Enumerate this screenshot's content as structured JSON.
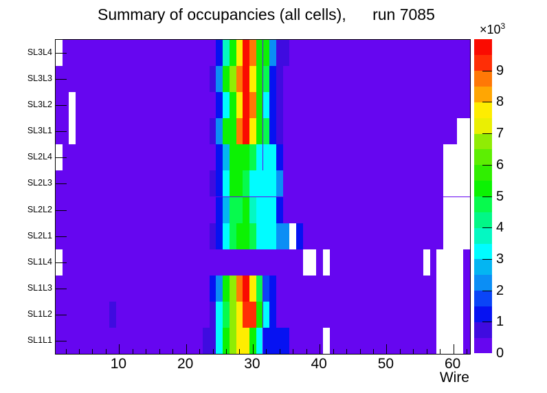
{
  "chart_data": {
    "type": "heatmap",
    "title": "Summary of occupancies (all cells),      run 7085",
    "xlabel": "Wire",
    "x_range": [
      0.5,
      62.5
    ],
    "n_wires": 62,
    "x_tick_labels": [
      10,
      20,
      30,
      40,
      50,
      60
    ],
    "x_minor_tick_step": 2,
    "zmin": 0,
    "zmax": 10000,
    "background_value": 200,
    "empty_cell_color": "#ffffff",
    "colorbar_tick_values": [
      0,
      1,
      2,
      3,
      4,
      5,
      6,
      7,
      8,
      9
    ],
    "colorbar_multiplier_base": "×10",
    "colorbar_multiplier_exp": "3",
    "palette": [
      "#6606f0",
      "#3f0be0",
      "#0612f2",
      "#0a45f7",
      "#0b8ef5",
      "#04b5f2",
      "#01fcff",
      "#04f8c2",
      "#02f787",
      "#07fa4d",
      "#0cf203",
      "#30ee01",
      "#5dee03",
      "#90ec04",
      "#eaef03",
      "#feed01",
      "#ffa603",
      "#ff7806",
      "#ff2e06",
      "#fa0b01"
    ],
    "rows_top_to_bottom": [
      {
        "label": "SL3L4",
        "runs": [
          [
            1,
            1,
            null
          ],
          [
            25,
            25,
            1200
          ],
          [
            26,
            26,
            3700
          ],
          [
            27,
            27,
            5200
          ],
          [
            28,
            28,
            7700
          ],
          [
            29,
            29,
            9700
          ],
          [
            30,
            30,
            8700
          ],
          [
            31,
            31,
            5200
          ],
          [
            32,
            32,
            5200
          ],
          [
            33,
            33,
            2400
          ],
          [
            34,
            35,
            700
          ]
        ]
      },
      {
        "label": "SL3L3",
        "runs": [
          [
            24,
            24,
            700
          ],
          [
            25,
            25,
            2400
          ],
          [
            26,
            26,
            5200
          ],
          [
            27,
            27,
            6700
          ],
          [
            28,
            28,
            8700
          ],
          [
            29,
            29,
            9700
          ],
          [
            30,
            30,
            7700
          ],
          [
            31,
            31,
            5200
          ],
          [
            32,
            32,
            4700
          ],
          [
            33,
            33,
            1200
          ],
          [
            34,
            34,
            700
          ]
        ]
      },
      {
        "label": "SL3L2",
        "runs": [
          [
            3,
            3,
            null
          ],
          [
            25,
            25,
            1200
          ],
          [
            26,
            26,
            3200
          ],
          [
            27,
            27,
            5200
          ],
          [
            28,
            28,
            7700
          ],
          [
            29,
            29,
            9700
          ],
          [
            30,
            30,
            8700
          ],
          [
            31,
            31,
            5200
          ],
          [
            32,
            32,
            3200
          ],
          [
            33,
            33,
            1200
          ],
          [
            34,
            34,
            700
          ]
        ]
      },
      {
        "label": "SL3L1",
        "runs": [
          [
            3,
            3,
            null
          ],
          [
            24,
            24,
            700
          ],
          [
            25,
            25,
            2400
          ],
          [
            26,
            26,
            5200
          ],
          [
            27,
            27,
            5200
          ],
          [
            28,
            28,
            8700
          ],
          [
            29,
            29,
            9700
          ],
          [
            30,
            30,
            7700
          ],
          [
            31,
            31,
            5200
          ],
          [
            32,
            32,
            4700
          ],
          [
            33,
            33,
            1200
          ],
          [
            34,
            34,
            700
          ],
          [
            61,
            62,
            null
          ]
        ]
      },
      {
        "label": "SL2L4",
        "runs": [
          [
            1,
            1,
            null
          ],
          [
            25,
            25,
            1200
          ],
          [
            26,
            26,
            2700
          ],
          [
            27,
            27,
            5200
          ],
          [
            28,
            28,
            5200
          ],
          [
            29,
            29,
            5200
          ],
          [
            30,
            30,
            4700
          ],
          [
            31,
            31,
            3200
          ],
          [
            32,
            32,
            3200
          ],
          [
            33,
            33,
            3200
          ],
          [
            34,
            34,
            1200
          ],
          [
            59,
            62,
            null
          ]
        ]
      },
      {
        "label": "SL2L3",
        "runs": [
          [
            24,
            24,
            700
          ],
          [
            25,
            25,
            1200
          ],
          [
            26,
            26,
            3200
          ],
          [
            27,
            27,
            5200
          ],
          [
            28,
            28,
            5200
          ],
          [
            29,
            29,
            4700
          ],
          [
            30,
            33,
            3200
          ],
          [
            34,
            34,
            2200
          ],
          [
            59,
            62,
            null
          ]
        ]
      },
      {
        "label": "SL2L2",
        "runs": [
          [
            25,
            25,
            1200
          ],
          [
            26,
            26,
            2700
          ],
          [
            27,
            27,
            4700
          ],
          [
            28,
            28,
            4700
          ],
          [
            29,
            29,
            5200
          ],
          [
            30,
            30,
            3700
          ],
          [
            31,
            33,
            3200
          ],
          [
            34,
            34,
            1200
          ],
          [
            59,
            62,
            null
          ]
        ]
      },
      {
        "label": "SL2L1",
        "runs": [
          [
            24,
            24,
            700
          ],
          [
            25,
            25,
            1200
          ],
          [
            26,
            26,
            3200
          ],
          [
            27,
            27,
            4700
          ],
          [
            28,
            28,
            5200
          ],
          [
            29,
            29,
            5200
          ],
          [
            30,
            30,
            4700
          ],
          [
            31,
            33,
            3200
          ],
          [
            34,
            35,
            2200
          ],
          [
            36,
            36,
            null
          ],
          [
            37,
            37,
            1200
          ],
          [
            59,
            62,
            null
          ]
        ]
      },
      {
        "label": "SL1L4",
        "runs": [
          [
            1,
            1,
            null
          ],
          [
            38,
            39,
            null
          ],
          [
            41,
            41,
            null
          ],
          [
            56,
            56,
            null
          ],
          [
            58,
            61,
            null
          ]
        ]
      },
      {
        "label": "SL1L3",
        "runs": [
          [
            24,
            24,
            1200
          ],
          [
            25,
            25,
            2400
          ],
          [
            26,
            26,
            5200
          ],
          [
            27,
            27,
            6700
          ],
          [
            28,
            28,
            8700
          ],
          [
            29,
            29,
            9700
          ],
          [
            30,
            30,
            7700
          ],
          [
            31,
            31,
            4700
          ],
          [
            32,
            32,
            1700
          ],
          [
            33,
            33,
            1200
          ],
          [
            58,
            61,
            null
          ]
        ]
      },
      {
        "label": "SL1L2",
        "runs": [
          [
            9,
            9,
            700
          ],
          [
            24,
            24,
            700
          ],
          [
            25,
            25,
            3200
          ],
          [
            26,
            26,
            4700
          ],
          [
            27,
            27,
            6700
          ],
          [
            28,
            28,
            7700
          ],
          [
            29,
            30,
            9400
          ],
          [
            31,
            31,
            5200
          ],
          [
            32,
            32,
            3200
          ],
          [
            33,
            33,
            1200
          ],
          [
            58,
            61,
            null
          ]
        ]
      },
      {
        "label": "SL1L1",
        "runs": [
          [
            23,
            24,
            700
          ],
          [
            25,
            25,
            3200
          ],
          [
            26,
            26,
            5200
          ],
          [
            27,
            27,
            6700
          ],
          [
            28,
            29,
            7700
          ],
          [
            30,
            30,
            5200
          ],
          [
            31,
            31,
            3200
          ],
          [
            32,
            35,
            1200
          ],
          [
            41,
            41,
            null
          ],
          [
            58,
            61,
            null
          ]
        ]
      }
    ]
  }
}
